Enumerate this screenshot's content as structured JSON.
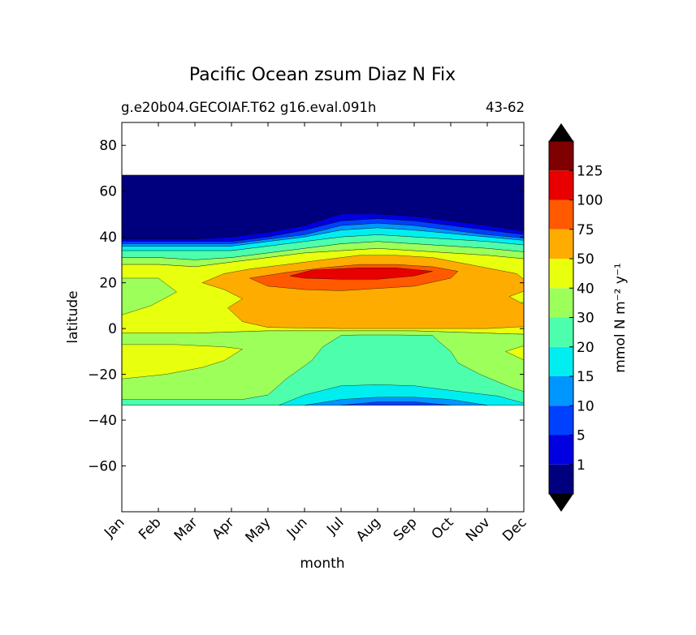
{
  "chart_data": {
    "type": "heatmap",
    "title": "Pacific Ocean zsum Diaz N Fix",
    "subtitle_left": "g.e20b04.GECOIAF.T62 g16.eval.091h",
    "subtitle_right": "43-62",
    "xlabel": "month",
    "ylabel": "latitude",
    "x_categories": [
      "Jan",
      "Feb",
      "Mar",
      "Apr",
      "May",
      "Jun",
      "Jul",
      "Aug",
      "Sep",
      "Oct",
      "Nov",
      "Dec"
    ],
    "ylim": [
      -80,
      90
    ],
    "yticks": [
      80,
      60,
      40,
      20,
      0,
      -20,
      -40,
      -60
    ],
    "ytick_labels": [
      "80",
      "60",
      "40",
      "20",
      "0",
      "−20",
      "−40",
      "−60"
    ],
    "data_lat_range": [
      -34,
      67
    ],
    "colorbar": {
      "label": "mmol N m⁻² y⁻¹",
      "levels": [
        0,
        1,
        5,
        10,
        15,
        20,
        30,
        40,
        50,
        75,
        100,
        125,
        150
      ],
      "tick_labels": [
        "1",
        "5",
        "10",
        "15",
        "20",
        "30",
        "40",
        "50",
        "75",
        "100",
        "125"
      ],
      "colors": [
        "#00007f",
        "#0000e0",
        "#0040ff",
        "#0096ff",
        "#00eef0",
        "#4dffad",
        "#9dff5a",
        "#e8ff0d",
        "#ffac00",
        "#ff5a00",
        "#e80000",
        "#7f0000"
      ],
      "extend_colors": [
        "#000000",
        "#000000"
      ]
    },
    "bands": [
      {
        "value": 0.5,
        "poly": [
          [
            0,
            67
          ],
          [
            12,
            67
          ],
          [
            12,
            40
          ],
          [
            10,
            45
          ],
          [
            8,
            49
          ],
          [
            7,
            50
          ],
          [
            6,
            50
          ],
          [
            5,
            45
          ],
          [
            4,
            42
          ],
          [
            3,
            40
          ],
          [
            2,
            39
          ],
          [
            1,
            39
          ],
          [
            0,
            39
          ]
        ]
      },
      {
        "value": 3,
        "poly": [
          [
            0,
            39
          ],
          [
            1,
            39
          ],
          [
            2,
            39
          ],
          [
            3,
            40
          ],
          [
            4,
            42
          ],
          [
            5,
            45
          ],
          [
            6,
            50
          ],
          [
            7,
            50
          ],
          [
            8,
            49
          ],
          [
            10,
            45
          ],
          [
            12,
            40
          ],
          [
            12,
            39
          ],
          [
            10,
            43
          ],
          [
            8,
            47
          ],
          [
            7,
            48
          ],
          [
            6,
            47
          ],
          [
            5,
            43
          ],
          [
            4,
            40
          ],
          [
            3,
            38
          ],
          [
            2,
            38
          ],
          [
            1,
            38
          ],
          [
            0,
            38
          ]
        ]
      },
      {
        "value": 7,
        "poly": [
          [
            0,
            38
          ],
          [
            1,
            38
          ],
          [
            2,
            38
          ],
          [
            3,
            38
          ],
          [
            4,
            40
          ],
          [
            5,
            43
          ],
          [
            6,
            47
          ],
          [
            7,
            48
          ],
          [
            8,
            47
          ],
          [
            10,
            43
          ],
          [
            12,
            39
          ],
          [
            12,
            38
          ],
          [
            10,
            41
          ],
          [
            8,
            45
          ],
          [
            7,
            46
          ],
          [
            6,
            45
          ],
          [
            5,
            41
          ],
          [
            4,
            39
          ],
          [
            3,
            37
          ],
          [
            2,
            37
          ],
          [
            1,
            37
          ],
          [
            0,
            37
          ]
        ]
      },
      {
        "value": 12,
        "poly": [
          [
            0,
            37
          ],
          [
            1,
            37
          ],
          [
            2,
            37
          ],
          [
            3,
            37
          ],
          [
            4,
            39
          ],
          [
            5,
            41
          ],
          [
            6,
            45
          ],
          [
            7,
            46
          ],
          [
            8,
            45
          ],
          [
            10,
            41
          ],
          [
            12,
            38
          ],
          [
            12,
            37
          ],
          [
            10,
            40
          ],
          [
            8,
            43
          ],
          [
            7,
            44
          ],
          [
            6,
            43
          ],
          [
            5,
            40
          ],
          [
            4,
            38
          ],
          [
            3,
            36
          ],
          [
            2,
            36
          ],
          [
            1,
            36
          ],
          [
            0,
            36
          ]
        ]
      },
      {
        "value": 17,
        "poly": [
          [
            0,
            36
          ],
          [
            1,
            36
          ],
          [
            2,
            36
          ],
          [
            3,
            36
          ],
          [
            4,
            38
          ],
          [
            5,
            40
          ],
          [
            6,
            43
          ],
          [
            7,
            44
          ],
          [
            8,
            43
          ],
          [
            10,
            40
          ],
          [
            12,
            37
          ],
          [
            12,
            35
          ],
          [
            10,
            38
          ],
          [
            8,
            40
          ],
          [
            7,
            41
          ],
          [
            6,
            40
          ],
          [
            5,
            38
          ],
          [
            4,
            36
          ],
          [
            3,
            34
          ],
          [
            2,
            34
          ],
          [
            1,
            34
          ],
          [
            0,
            34
          ]
        ]
      },
      {
        "value": 25,
        "poly": [
          [
            0,
            34
          ],
          [
            1,
            34
          ],
          [
            2,
            34
          ],
          [
            3,
            34
          ],
          [
            4,
            36
          ],
          [
            5,
            38
          ],
          [
            6,
            40
          ],
          [
            7,
            41
          ],
          [
            8,
            40
          ],
          [
            10,
            38
          ],
          [
            12,
            35
          ],
          [
            12,
            32
          ],
          [
            10,
            35
          ],
          [
            8,
            37
          ],
          [
            7,
            38
          ],
          [
            6,
            37
          ],
          [
            5,
            35
          ],
          [
            4,
            33
          ],
          [
            3,
            31
          ],
          [
            2,
            30
          ],
          [
            1,
            31
          ],
          [
            0,
            31
          ]
        ]
      },
      {
        "value": 35,
        "poly": [
          [
            0,
            31
          ],
          [
            1,
            31
          ],
          [
            2,
            30
          ],
          [
            3,
            31
          ],
          [
            4,
            33
          ],
          [
            5,
            35
          ],
          [
            6,
            37
          ],
          [
            7,
            38
          ],
          [
            8,
            37
          ],
          [
            10,
            35
          ],
          [
            12,
            32
          ],
          [
            12,
            29
          ],
          [
            10,
            32
          ],
          [
            8,
            34
          ],
          [
            7,
            35
          ],
          [
            6,
            34
          ],
          [
            5,
            33
          ],
          [
            4,
            31
          ],
          [
            3,
            29
          ],
          [
            2,
            27
          ],
          [
            1,
            28
          ],
          [
            0,
            28
          ]
        ]
      },
      {
        "value": 45,
        "poly": [
          [
            0,
            28
          ],
          [
            1,
            28
          ],
          [
            2,
            27
          ],
          [
            3,
            29
          ],
          [
            4,
            31
          ],
          [
            5,
            33
          ],
          [
            6,
            34
          ],
          [
            7,
            35
          ],
          [
            8,
            34
          ],
          [
            10,
            32
          ],
          [
            12,
            29
          ],
          [
            12,
            -3
          ],
          [
            10,
            -2
          ],
          [
            8,
            -1
          ],
          [
            6,
            -1
          ],
          [
            4,
            -1
          ],
          [
            2,
            -2
          ],
          [
            0,
            -2
          ]
        ]
      },
      {
        "value": 35,
        "poly": [
          [
            0,
            22
          ],
          [
            1,
            22
          ],
          [
            1.5,
            16
          ],
          [
            0.8,
            10
          ],
          [
            0,
            6
          ]
        ]
      },
      {
        "value": 35,
        "poly": [
          [
            12,
            18
          ],
          [
            11.2,
            12
          ],
          [
            10.4,
            10
          ],
          [
            11,
            8
          ],
          [
            12,
            8
          ]
        ]
      },
      {
        "value": 60,
        "poly": [
          [
            2.2,
            20
          ],
          [
            2.8,
            24
          ],
          [
            3.5,
            26
          ],
          [
            4.5,
            28
          ],
          [
            5.5,
            30
          ],
          [
            6.5,
            32
          ],
          [
            7.5,
            32
          ],
          [
            8.5,
            31
          ],
          [
            9.5,
            28
          ],
          [
            10.8,
            24
          ],
          [
            11.3,
            18
          ],
          [
            10.6,
            14
          ],
          [
            11.3,
            8
          ],
          [
            11.2,
            1
          ],
          [
            10,
            0
          ],
          [
            8,
            0
          ],
          [
            6,
            0
          ],
          [
            4,
            0.5
          ],
          [
            3.3,
            3
          ],
          [
            2.9,
            9
          ],
          [
            3.3,
            13
          ],
          [
            2.8,
            17
          ]
        ]
      },
      {
        "value": 85,
        "poly": [
          [
            3.5,
            22
          ],
          [
            4.5,
            24.5
          ],
          [
            5.5,
            26.5
          ],
          [
            6.5,
            28
          ],
          [
            7.5,
            28
          ],
          [
            8.5,
            27
          ],
          [
            9.2,
            25
          ],
          [
            9.0,
            22
          ],
          [
            8.0,
            18.5
          ],
          [
            7,
            17.5
          ],
          [
            6,
            16.5
          ],
          [
            5,
            17
          ],
          [
            4,
            18.5
          ]
        ]
      },
      {
        "value": 110,
        "poly": [
          [
            4.6,
            23
          ],
          [
            5.2,
            25.5
          ],
          [
            6.5,
            26.5
          ],
          [
            7.5,
            26.5
          ],
          [
            8.5,
            25
          ],
          [
            8.0,
            23
          ],
          [
            7,
            21.5
          ],
          [
            6,
            21.5
          ],
          [
            5,
            22
          ]
        ]
      },
      {
        "value": 35,
        "poly": [
          [
            0,
            -2
          ],
          [
            2,
            -2
          ],
          [
            4,
            -1
          ],
          [
            6,
            -1
          ],
          [
            8,
            -1
          ],
          [
            10,
            -2
          ],
          [
            12,
            -3
          ],
          [
            12,
            -33.5
          ],
          [
            0,
            -33.5
          ]
        ]
      },
      {
        "value": 45,
        "poly": [
          [
            0,
            -7
          ],
          [
            1.5,
            -7
          ],
          [
            2.8,
            -8
          ],
          [
            3.3,
            -9
          ],
          [
            3,
            -12
          ],
          [
            2.8,
            -14
          ],
          [
            2.2,
            -17
          ],
          [
            1.2,
            -20
          ],
          [
            0,
            -22
          ]
        ]
      },
      {
        "value": 45,
        "poly": [
          [
            12,
            -7
          ],
          [
            11,
            -7.5
          ],
          [
            10.5,
            -10
          ],
          [
            10.9,
            -13
          ],
          [
            11.3,
            -16
          ],
          [
            12,
            -18
          ]
        ]
      },
      {
        "value": 25,
        "poly": [
          [
            6,
            -3
          ],
          [
            6.5,
            -2.8
          ],
          [
            7.5,
            -2.8
          ],
          [
            8.5,
            -3
          ],
          [
            8.7,
            -6
          ],
          [
            9,
            -10
          ],
          [
            9.2,
            -15
          ],
          [
            9.8,
            -20
          ],
          [
            10.7,
            -26
          ],
          [
            11.3,
            -29
          ],
          [
            12,
            -30
          ],
          [
            12,
            -33.5
          ],
          [
            0,
            -33.5
          ],
          [
            0,
            -31
          ],
          [
            2,
            -31
          ],
          [
            3.3,
            -31
          ],
          [
            4,
            -29
          ],
          [
            4.5,
            -22
          ],
          [
            5.2,
            -14
          ],
          [
            5.5,
            -8
          ]
        ]
      },
      {
        "value": 17,
        "poly": [
          [
            4.3,
            -33.5
          ],
          [
            5,
            -29
          ],
          [
            6,
            -25
          ],
          [
            7,
            -24.5
          ],
          [
            8,
            -25
          ],
          [
            9,
            -27
          ],
          [
            10.3,
            -29.5
          ],
          [
            11.2,
            -33.5
          ]
        ]
      },
      {
        "value": 12,
        "poly": [
          [
            5,
            -33.5
          ],
          [
            6,
            -31
          ],
          [
            7,
            -30
          ],
          [
            8,
            -30
          ],
          [
            9,
            -31
          ],
          [
            10,
            -33.5
          ]
        ]
      },
      {
        "value": 7,
        "poly": [
          [
            6,
            -33.5
          ],
          [
            7,
            -32
          ],
          [
            8,
            -32
          ],
          [
            9,
            -33.5
          ]
        ]
      }
    ]
  }
}
